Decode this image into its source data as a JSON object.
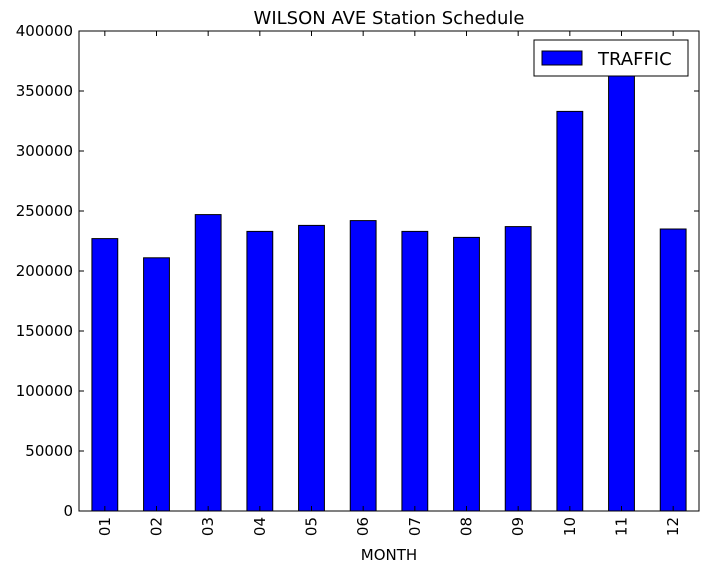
{
  "chart_data": {
    "type": "bar",
    "title": "WILSON AVE Station Schedule",
    "xlabel": "MONTH",
    "ylabel": "",
    "categories": [
      "01",
      "02",
      "03",
      "04",
      "05",
      "06",
      "07",
      "08",
      "09",
      "10",
      "11",
      "12"
    ],
    "series": [
      {
        "name": "TRAFFIC",
        "color": "#0000ff",
        "values": [
          227000,
          211000,
          247000,
          233000,
          238000,
          242000,
          233000,
          228000,
          237000,
          333000,
          363000,
          235000
        ]
      }
    ],
    "ylim": [
      0,
      400000
    ],
    "yticks": [
      "0",
      "50000",
      "100000",
      "150000",
      "200000",
      "250000",
      "300000",
      "350000",
      "400000"
    ],
    "grid": false,
    "legend": "top-right"
  }
}
